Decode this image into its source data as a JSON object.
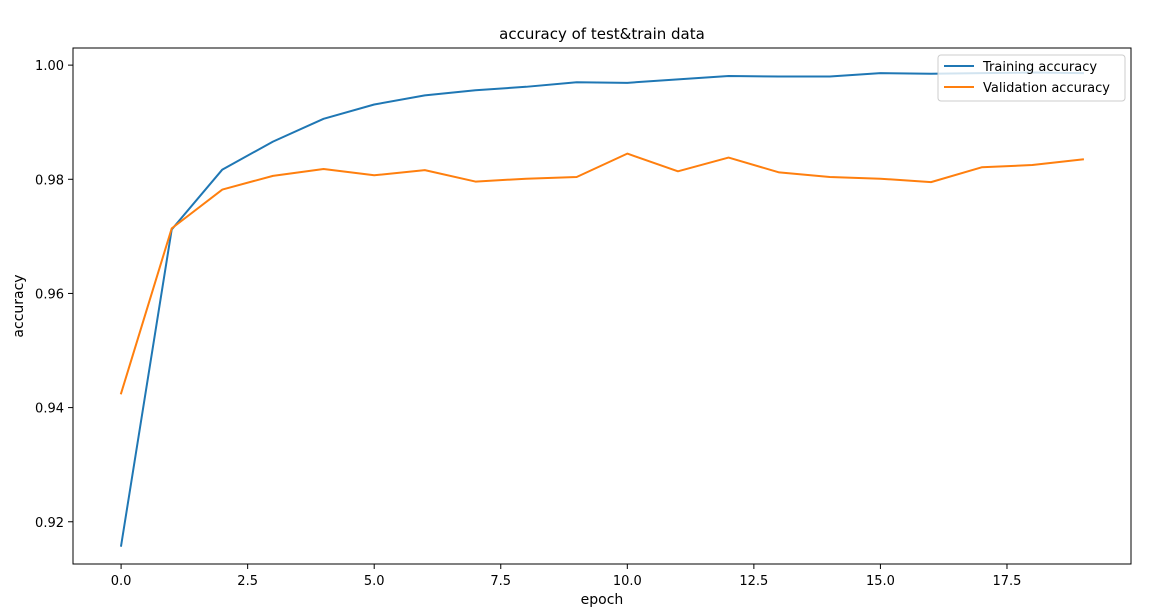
{
  "chart_data": {
    "type": "line",
    "title": "accuracy of test&train data",
    "xlabel": "epoch",
    "ylabel": "accuracy",
    "xlim": [
      -0.95,
      19.95
    ],
    "ylim": [
      0.9126,
      1.003
    ],
    "x_ticks": [
      0.0,
      2.5,
      5.0,
      7.5,
      10.0,
      12.5,
      15.0,
      17.5
    ],
    "x_tick_labels": [
      "0.0",
      "2.5",
      "5.0",
      "7.5",
      "10.0",
      "12.5",
      "15.0",
      "17.5"
    ],
    "y_ticks": [
      0.92,
      0.94,
      0.96,
      0.98,
      1.0
    ],
    "y_tick_labels": [
      "0.92",
      "0.94",
      "0.96",
      "0.98",
      "1.00"
    ],
    "grid": false,
    "legend_position": "top-right",
    "x": [
      0,
      1,
      2,
      3,
      4,
      5,
      6,
      7,
      8,
      9,
      10,
      11,
      12,
      13,
      14,
      15,
      16,
      17,
      18,
      19
    ],
    "series": [
      {
        "name": "Training accuracy",
        "color": "#1f77b4",
        "values": [
          0.9158,
          0.9712,
          0.9817,
          0.9866,
          0.9906,
          0.9931,
          0.9947,
          0.9956,
          0.9962,
          0.997,
          0.9969,
          0.9975,
          0.9981,
          0.998,
          0.998,
          0.9986,
          0.9985,
          0.9986,
          0.9987,
          0.9986
        ]
      },
      {
        "name": "Validation accuracy",
        "color": "#ff7f0e",
        "values": [
          0.9425,
          0.9714,
          0.9782,
          0.9806,
          0.9818,
          0.9807,
          0.9816,
          0.9796,
          0.9801,
          0.9804,
          0.9845,
          0.9814,
          0.9838,
          0.9812,
          0.9804,
          0.9801,
          0.9795,
          0.9821,
          0.9825,
          0.9835
        ]
      }
    ]
  }
}
